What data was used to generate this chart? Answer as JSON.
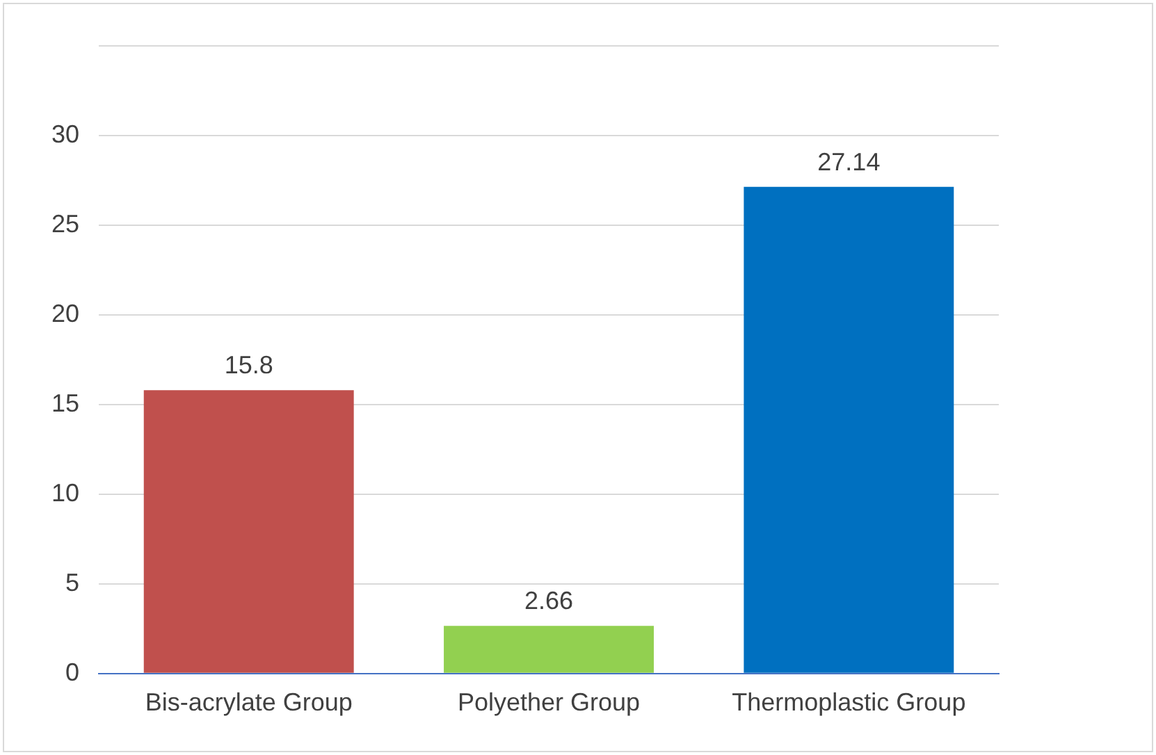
{
  "chart_data": {
    "type": "bar",
    "categories": [
      "Bis-acrylate Group",
      "Polyether Group",
      "Thermoplastic Group"
    ],
    "values": [
      15.8,
      2.66,
      27.14
    ],
    "colors": [
      "#c0504d",
      "#92d050",
      "#0070c0"
    ],
    "ylim": [
      0,
      35
    ],
    "yticks": [
      0,
      5,
      10,
      15,
      20,
      25,
      30,
      {
        "value": 35,
        "label": null
      }
    ],
    "grid": "y",
    "data_labels": true
  }
}
